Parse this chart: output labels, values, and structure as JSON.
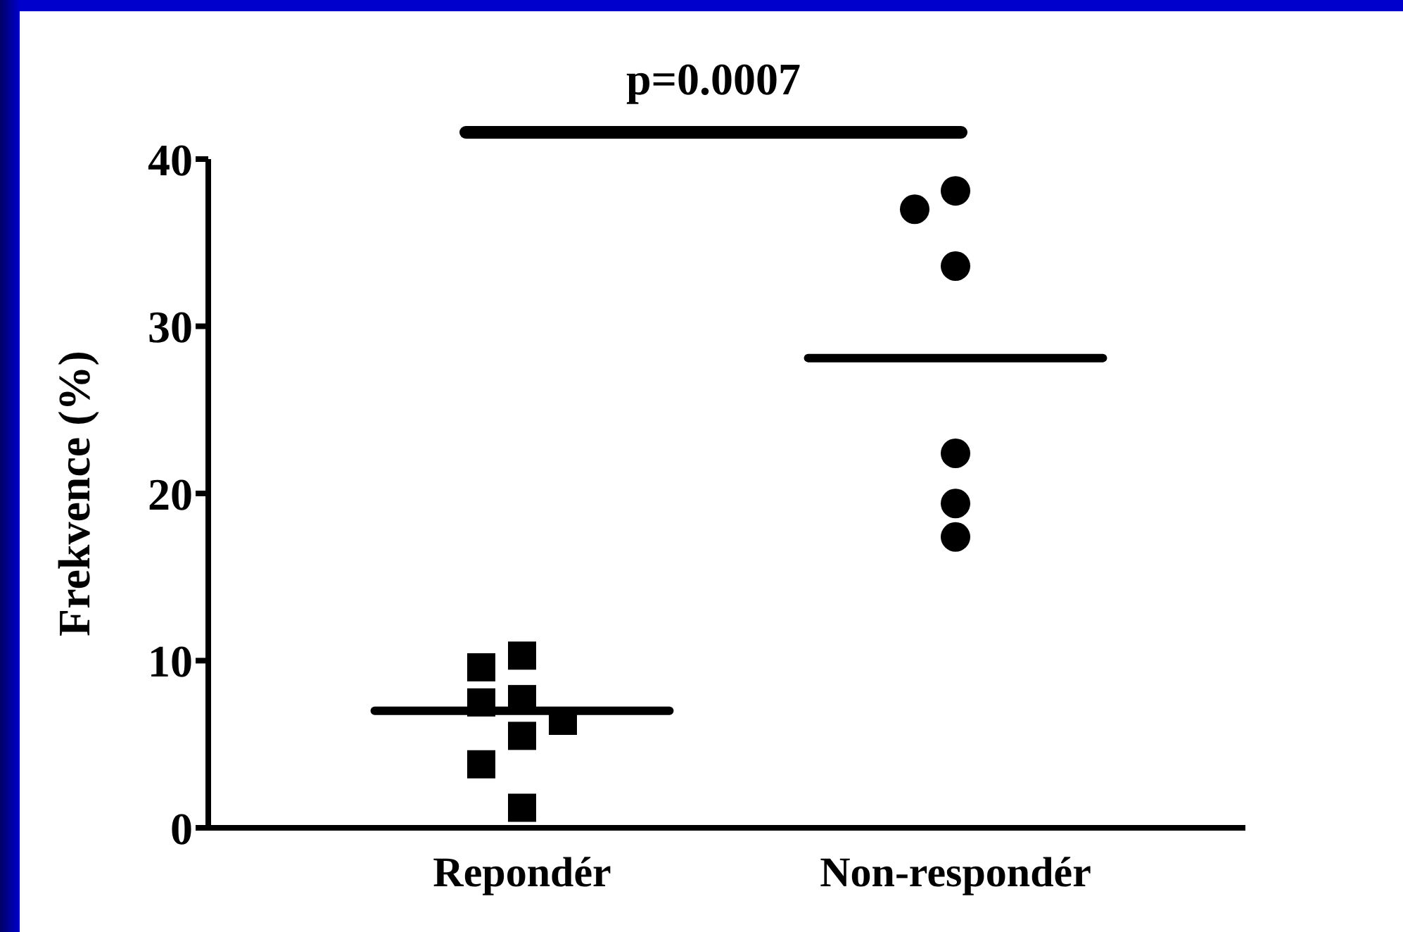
{
  "chart_data": {
    "type": "scatter",
    "categories": [
      "Repondér",
      "Non-respondér"
    ],
    "ylabel": "Frekvence (%)",
    "ylim": [
      0,
      40
    ],
    "yticks": [
      0,
      10,
      20,
      30,
      40
    ],
    "annotations": [
      "p=0.0007"
    ],
    "grid": false,
    "legend": false,
    "series": [
      {
        "type": "scatter",
        "marker": "square",
        "color": "#000000",
        "x": [
          "Repondér",
          "Repondér",
          "Repondér",
          "Repondér",
          "Repondér",
          "Repondér",
          "Repondér",
          "Repondér"
        ],
        "values": [
          10.3,
          9.6,
          7.7,
          7.5,
          6.4,
          5.5,
          3.8,
          1.2
        ]
      },
      {
        "type": "scatter",
        "marker": "circle",
        "color": "#000000",
        "x": [
          "Non-respondér",
          "Non-respondér",
          "Non-respondér",
          "Non-respondér",
          "Non-respondér",
          "Non-respondér"
        ],
        "values": [
          38.1,
          37.0,
          33.6,
          22.4,
          19.4,
          17.4
        ]
      }
    ],
    "ref_lines": [
      {
        "axis": "y",
        "value": 7.0,
        "color": "#000000"
      },
      {
        "axis": "y",
        "value": 28.1,
        "color": "#000000"
      }
    ]
  }
}
